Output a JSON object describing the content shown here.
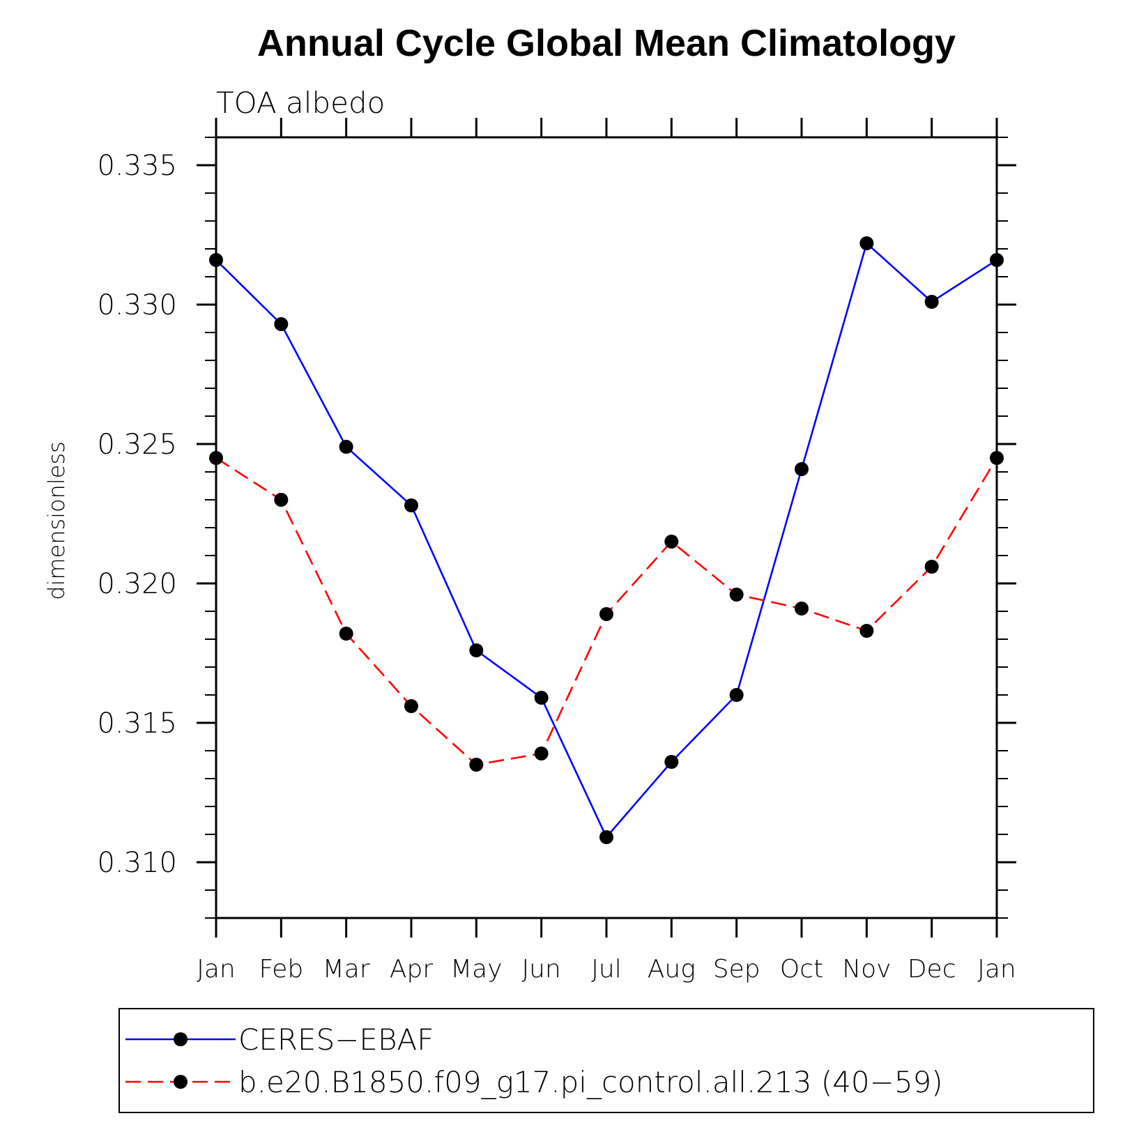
{
  "chart_data": {
    "type": "line",
    "title": "Annual Cycle Global Mean Climatology",
    "subtitle": "TOA albedo",
    "xlabel": "",
    "ylabel": "dimensionless",
    "categories": [
      "Jan",
      "Feb",
      "Mar",
      "Apr",
      "May",
      "Jun",
      "Jul",
      "Aug",
      "Sep",
      "Oct",
      "Nov",
      "Dec",
      "Jan"
    ],
    "ylim": [
      0.308,
      0.336
    ],
    "yticks": [
      0.31,
      0.315,
      0.32,
      0.325,
      0.33,
      0.335
    ],
    "ytick_labels": [
      "0.310",
      "0.315",
      "0.320",
      "0.325",
      "0.330",
      "0.335"
    ],
    "grid": false,
    "legend_position": "bottom",
    "series": [
      {
        "name": "CERES−EBAF",
        "color": "#0000ff",
        "style": "solid",
        "marker": "circle",
        "values": [
          0.3316,
          0.3293,
          0.3249,
          0.3228,
          0.3176,
          0.3159,
          0.3109,
          0.3136,
          0.316,
          0.3241,
          0.3322,
          0.3301,
          0.3316
        ]
      },
      {
        "name": "b.e20.B1850.f09_g17.pi_control.all.213 (40−59)",
        "color": "#ff0000",
        "style": "dashed",
        "marker": "circle",
        "values": [
          0.3245,
          0.323,
          0.3182,
          0.3156,
          0.3135,
          0.3139,
          0.3189,
          0.3215,
          0.3196,
          0.3191,
          0.3183,
          0.3206,
          0.3245
        ]
      }
    ]
  }
}
